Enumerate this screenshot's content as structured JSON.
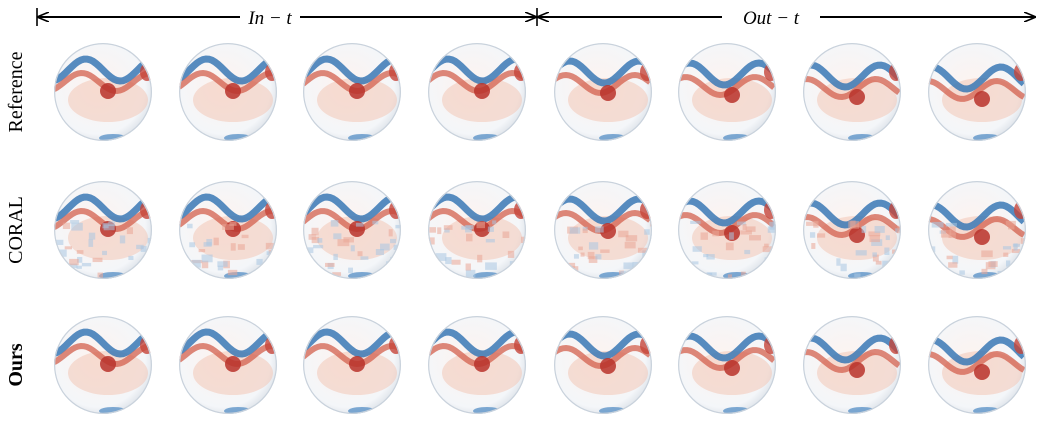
{
  "header": {
    "in_label": "In − t",
    "out_label": "Out − t"
  },
  "rows": [
    {
      "label": "Reference"
    },
    {
      "label": "CORAL"
    },
    {
      "label": "Ours"
    }
  ]
}
